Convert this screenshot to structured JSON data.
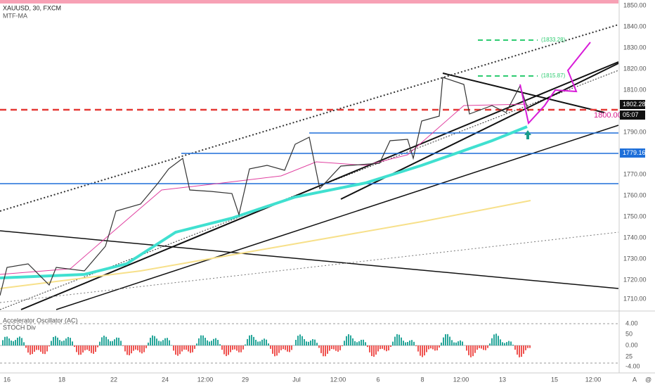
{
  "header": {
    "symbol": "XAUUSD, 30, FXCM",
    "indicator": "MTF-MA"
  },
  "price_axis": [
    "1850.00",
    "1840.00",
    "1830.00",
    "1820.00",
    "1810.00",
    "1790.00",
    "1770.00",
    "1760.00",
    "1750.00",
    "1740.00",
    "1730.00",
    "1720.00",
    "1710.00"
  ],
  "price_tags": {
    "last": "1802.28",
    "countdown": "05:07",
    "level": "1779.16",
    "drawn_level": "1800.00"
  },
  "fib_labels": [
    "(1833.28)",
    "(1815.87)"
  ],
  "lower_pane": {
    "title": "Accelerator Oscillator (AC)",
    "subtitle": "STOCH Div",
    "axis": [
      "4.00",
      "50",
      "0.00",
      "25",
      "-4.00"
    ]
  },
  "time_axis": [
    "16",
    "18",
    "22",
    "24",
    "12:00",
    "29",
    "Jul",
    "12:00",
    "6",
    "8",
    "12:00",
    "13",
    "15",
    "12:00"
  ],
  "corner": [
    "A",
    "@"
  ]
}
